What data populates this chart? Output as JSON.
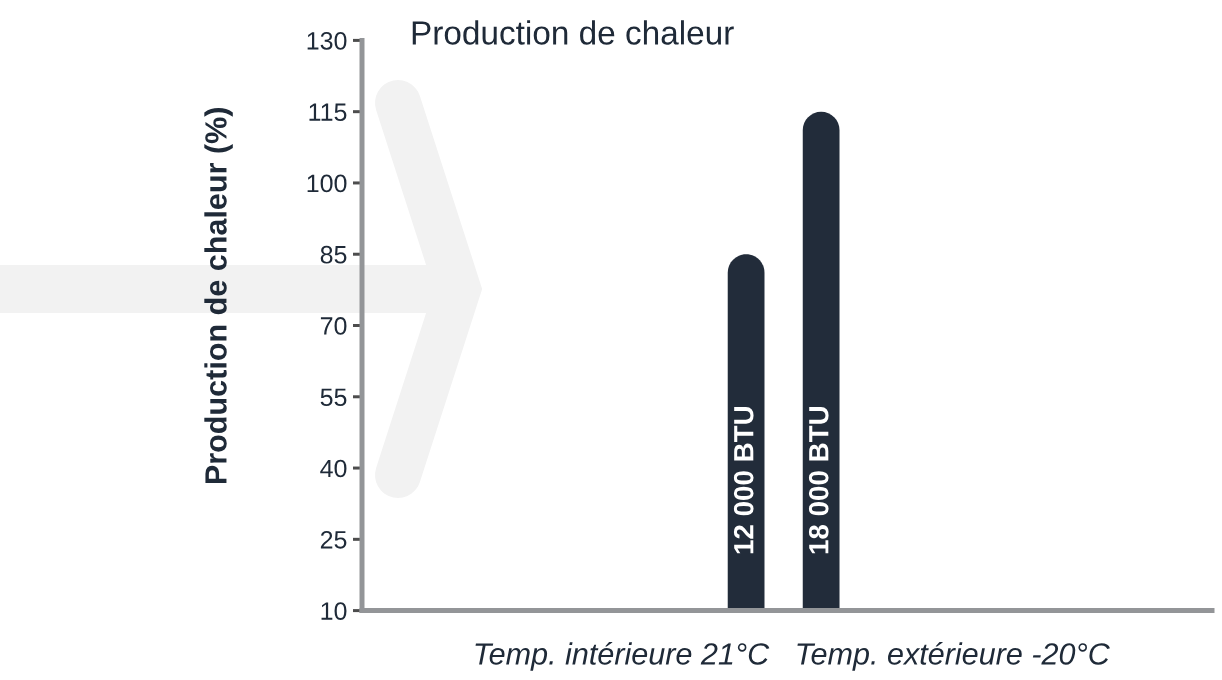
{
  "chart_data": {
    "type": "bar",
    "title": "Production de chaleur",
    "categories": [
      "12 000 BTU",
      "18 000 BTU"
    ],
    "values": [
      85,
      115
    ],
    "color": "#222c3a",
    "xlabel": "Temp. intérieure 21°C   Temp. extérieure -20°C",
    "ylabel": "Production de chaleur (%)",
    "ylim": [
      10,
      130
    ],
    "yticks": [
      10,
      25,
      40,
      55,
      70,
      85,
      100,
      115,
      130
    ]
  }
}
